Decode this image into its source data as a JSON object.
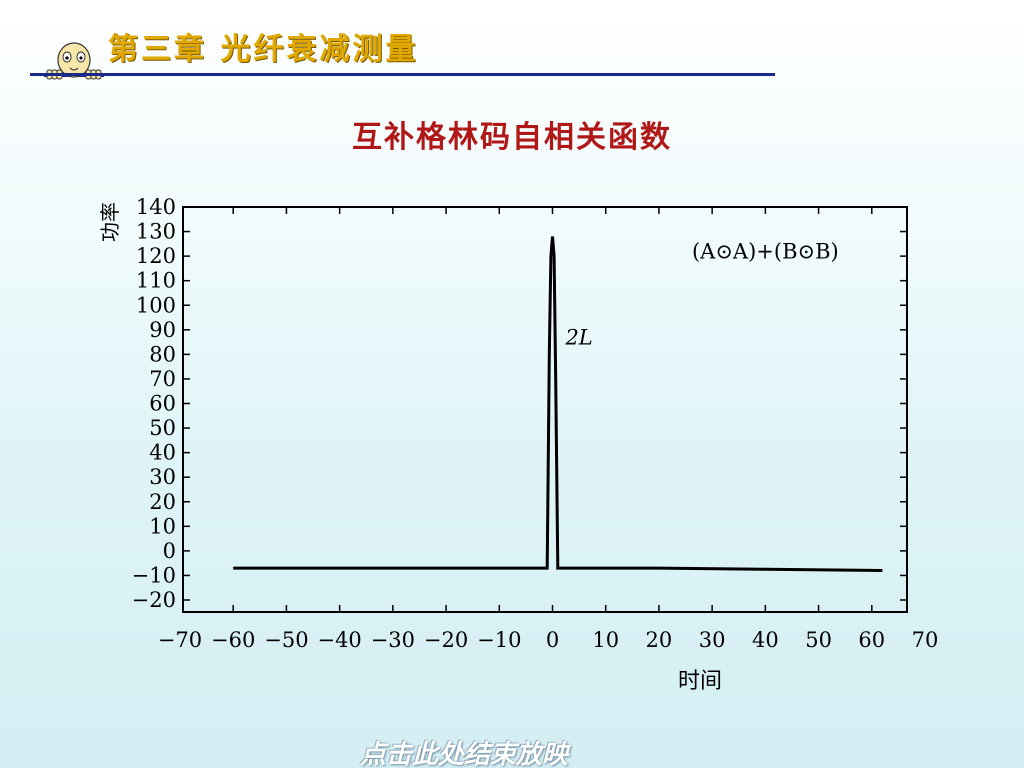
{
  "header": {
    "chapter_title": "第三章  光纤衰减测量"
  },
  "slide": {
    "title": "互补格林码自相关函数"
  },
  "footer": {
    "end_show_link": "点击此处结束放映"
  },
  "colors": {
    "chapter_title": "#e0a800",
    "header_rule": "#1a2a8c",
    "slide_title": "#b01818",
    "plot_line": "#000000"
  },
  "chart_data": {
    "type": "line",
    "title": "",
    "xlabel": "时间",
    "ylabel": "功率",
    "xlim": [
      -70,
      70
    ],
    "ylim": [
      -20,
      140
    ],
    "xticks": [
      -70,
      -60,
      -50,
      -40,
      -30,
      -20,
      -10,
      0,
      10,
      20,
      30,
      40,
      50,
      60,
      70
    ],
    "xtick_labels": [
      "−70",
      "−60",
      "−50",
      "−40",
      "−30",
      "−20",
      "−10",
      "0",
      "10",
      "20",
      "30",
      "40",
      "50",
      "60",
      "70"
    ],
    "yticks": [
      140,
      130,
      120,
      110,
      100,
      90,
      80,
      70,
      60,
      50,
      40,
      30,
      20,
      10,
      0,
      -10,
      -20
    ],
    "ytick_labels": [
      "140",
      "130",
      "120",
      "110",
      "100",
      "90",
      "80",
      "70",
      "60",
      "50",
      "40",
      "30",
      "20",
      "10",
      "0",
      "−10",
      "−20"
    ],
    "grid": false,
    "series": [
      {
        "name": "(A⊙A)+(B⊙B)",
        "x": [
          -60,
          -20,
          -1,
          -0.6,
          -0.3,
          0,
          0.3,
          0.6,
          1,
          20,
          40,
          62
        ],
        "y": [
          -7,
          -7,
          -7,
          80,
          120,
          128,
          120,
          70,
          -7,
          -7,
          -7.5,
          -8
        ]
      }
    ],
    "annotations": [
      {
        "text": "(A⊙A)+(B⊙B)",
        "x": 40,
        "y": 119
      },
      {
        "text": "2L",
        "x": 5,
        "y": 84
      }
    ]
  }
}
